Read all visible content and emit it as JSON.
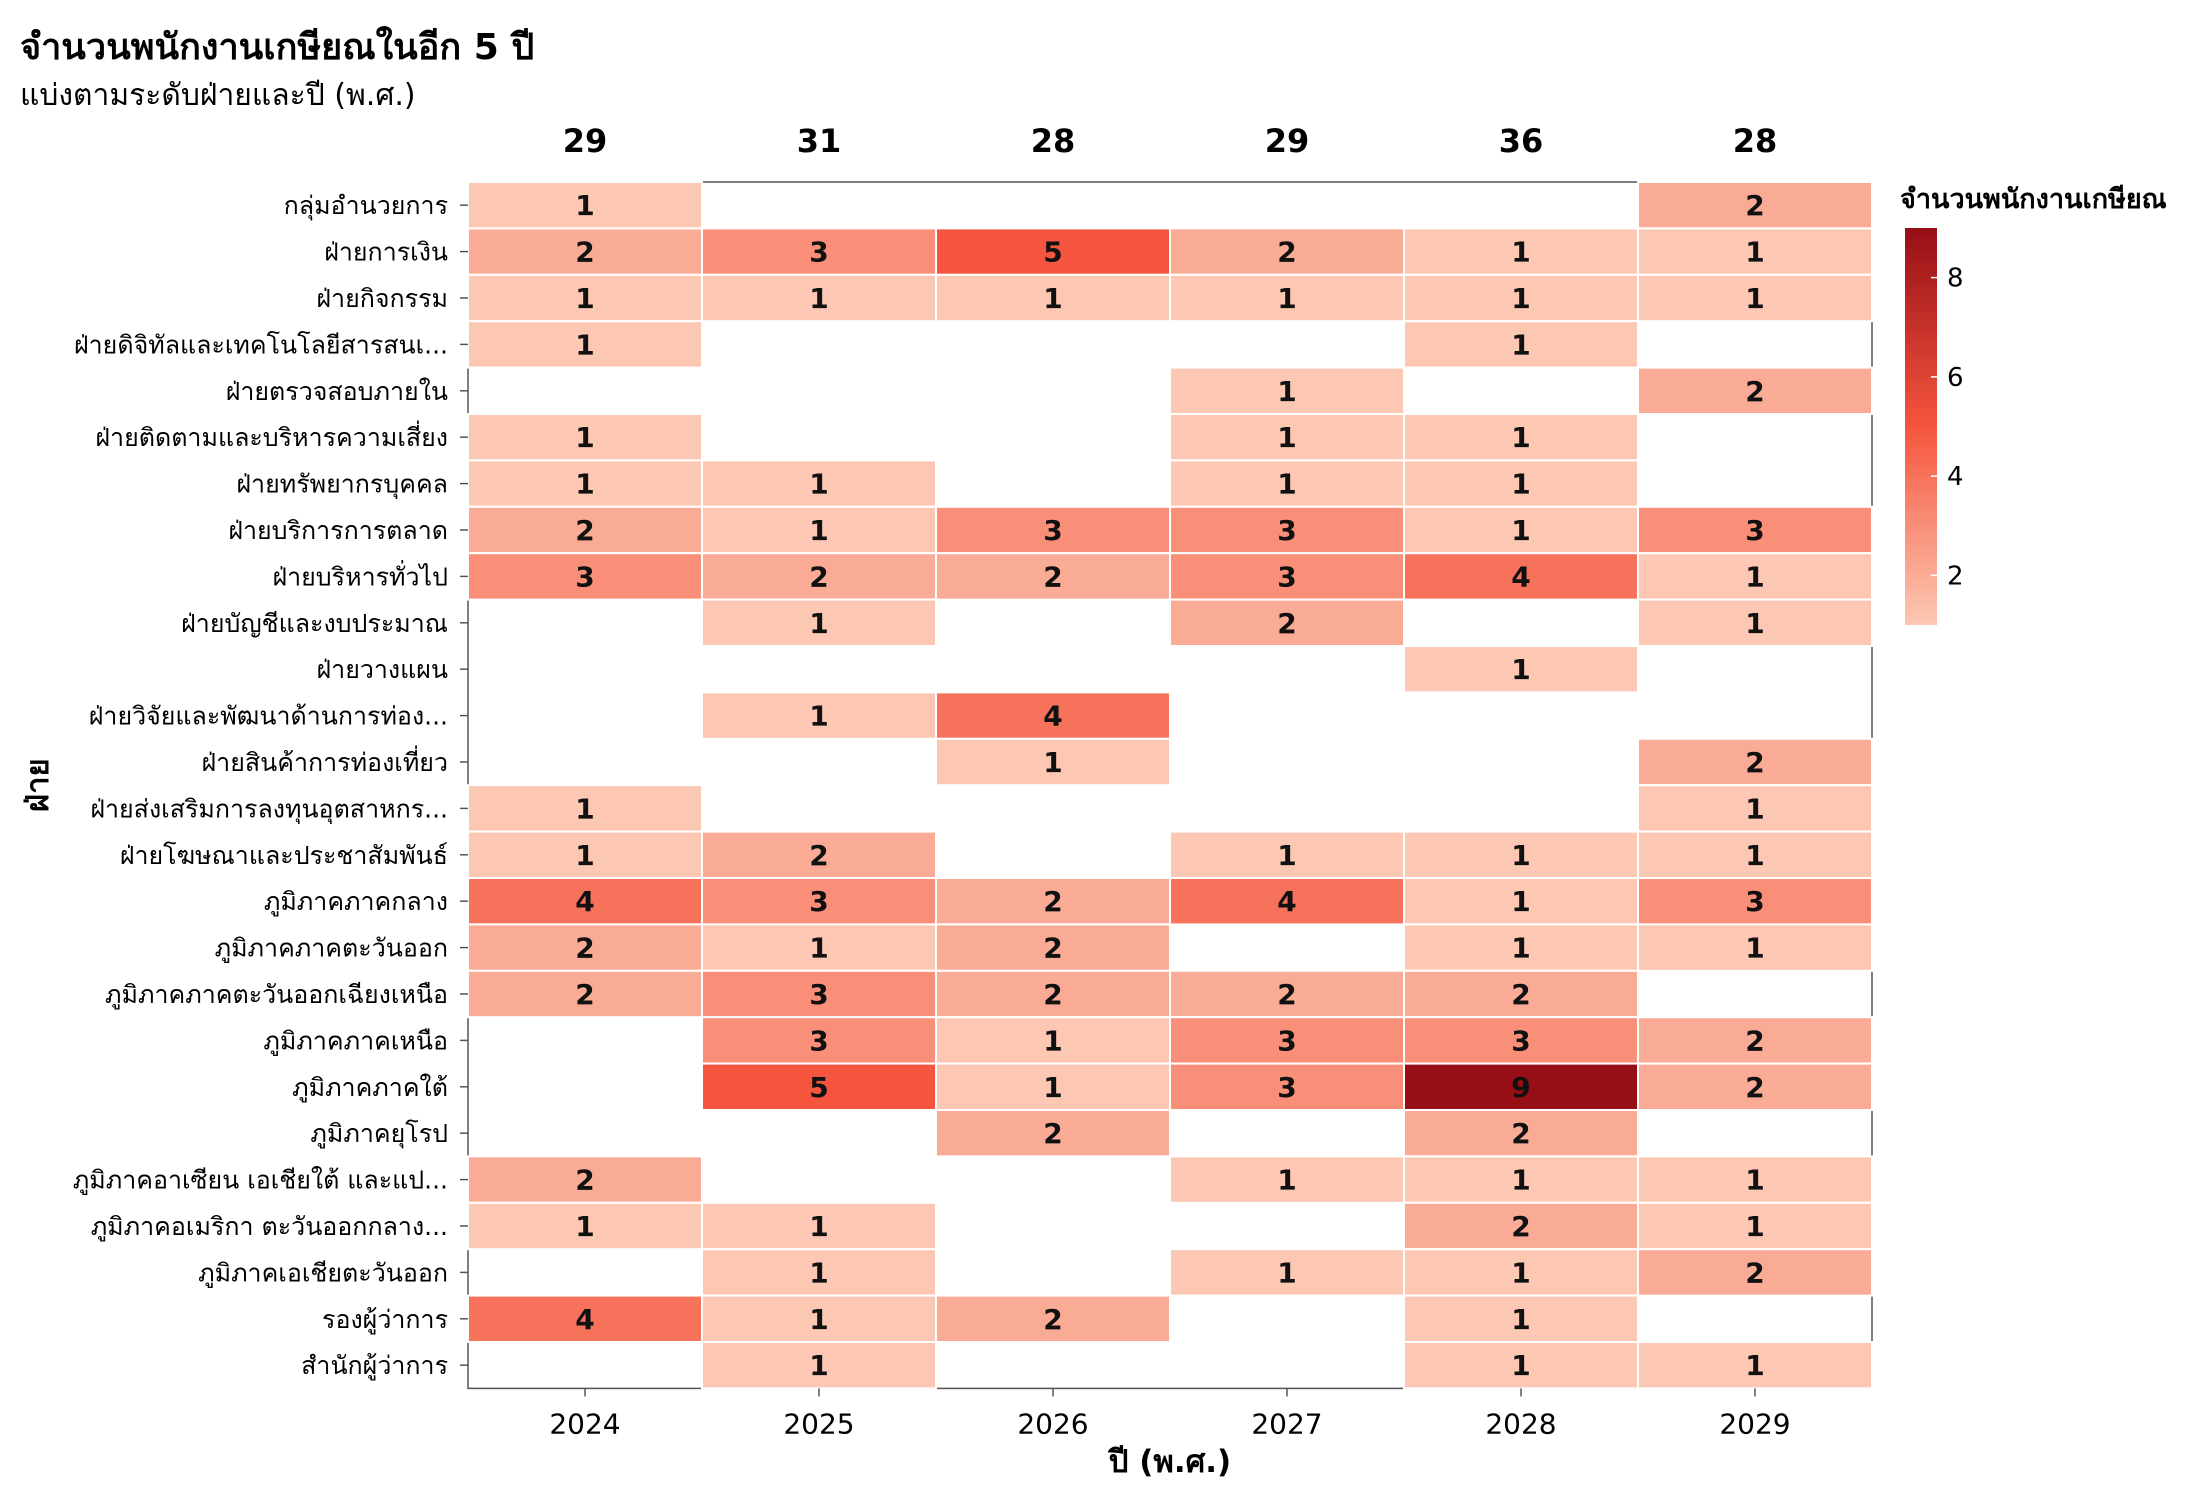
{
  "header": {
    "title": "จำนวนพนักงานเกษียณในอีก 5 ปี",
    "subtitle": "แบ่งตามระดับฝ่ายและปี (พ.ศ.)"
  },
  "chart_data": {
    "type": "heatmap",
    "xlabel": "ปี (พ.ศ.)",
    "ylabel": "ฝ่าย",
    "x": [
      "2024",
      "2025",
      "2026",
      "2027",
      "2028",
      "2029"
    ],
    "column_totals": [
      29,
      31,
      28,
      29,
      36,
      28
    ],
    "y": [
      "กลุ่มอำนวยการ",
      "ฝ่ายการเงิน",
      "ฝ่ายกิจกรรม",
      "ฝ่ายดิจิทัลและเทคโนโลยีสารสนเ...",
      "ฝ่ายตรวจสอบภายใน",
      "ฝ่ายติดตามและบริหารความเสี่ยง",
      "ฝ่ายทรัพยากรบุคคล",
      "ฝ่ายบริการการตลาด",
      "ฝ่ายบริหารทั่วไป",
      "ฝ่ายบัญชีและงบประมาณ",
      "ฝ่ายวางแผน",
      "ฝ่ายวิจัยและพัฒนาด้านการท่อง...",
      "ฝ่ายสินค้าการท่องเที่ยว",
      "ฝ่ายส่งเสริมการลงทุนอุตสาหกร...",
      "ฝ่ายโฆษณาและประชาสัมพันธ์",
      "ภูมิภาคภาคกลาง",
      "ภูมิภาคภาคตะวันออก",
      "ภูมิภาคภาคตะวันออกเฉียงเหนือ",
      "ภูมิภาคภาคเหนือ",
      "ภูมิภาคภาคใต้",
      "ภูมิภาคยุโรป",
      "ภูมิภาคอาเซียน เอเชียใต้ และแป...",
      "ภูมิภาคอเมริกา ตะวันออกกลาง...",
      "ภูมิภาคเอเชียตะวันออก",
      "รองผู้ว่าการ",
      "สำนักผู้ว่าการ"
    ],
    "values": [
      [
        1,
        null,
        null,
        null,
        null,
        2
      ],
      [
        2,
        3,
        5,
        2,
        1,
        1
      ],
      [
        1,
        1,
        1,
        1,
        1,
        1
      ],
      [
        1,
        null,
        null,
        null,
        1,
        null
      ],
      [
        null,
        null,
        null,
        1,
        null,
        2
      ],
      [
        1,
        null,
        null,
        1,
        1,
        null
      ],
      [
        1,
        1,
        null,
        1,
        1,
        null
      ],
      [
        2,
        1,
        3,
        3,
        1,
        3
      ],
      [
        3,
        2,
        2,
        3,
        4,
        1
      ],
      [
        null,
        1,
        null,
        2,
        null,
        1
      ],
      [
        null,
        null,
        null,
        null,
        1,
        null
      ],
      [
        null,
        1,
        4,
        null,
        null,
        null
      ],
      [
        null,
        null,
        1,
        null,
        null,
        2
      ],
      [
        1,
        null,
        null,
        null,
        null,
        1
      ],
      [
        1,
        2,
        null,
        1,
        1,
        1
      ],
      [
        4,
        3,
        2,
        4,
        1,
        3
      ],
      [
        2,
        1,
        2,
        null,
        1,
        1
      ],
      [
        2,
        3,
        2,
        2,
        2,
        null
      ],
      [
        null,
        3,
        1,
        3,
        3,
        2
      ],
      [
        null,
        5,
        1,
        3,
        9,
        2
      ],
      [
        null,
        null,
        2,
        null,
        2,
        null
      ],
      [
        2,
        null,
        null,
        1,
        1,
        1
      ],
      [
        1,
        1,
        null,
        null,
        2,
        1
      ],
      [
        null,
        1,
        null,
        1,
        1,
        2
      ],
      [
        4,
        1,
        2,
        null,
        1,
        null
      ],
      [
        null,
        1,
        null,
        null,
        1,
        1
      ]
    ],
    "legend": {
      "title": "จำนวนพนักงานเกษียณ",
      "ticks": [
        2,
        4,
        6,
        8
      ],
      "range": [
        1,
        9
      ],
      "placement": "right"
    },
    "color_low": "#fcc8b3",
    "color_high": "#960f16"
  }
}
